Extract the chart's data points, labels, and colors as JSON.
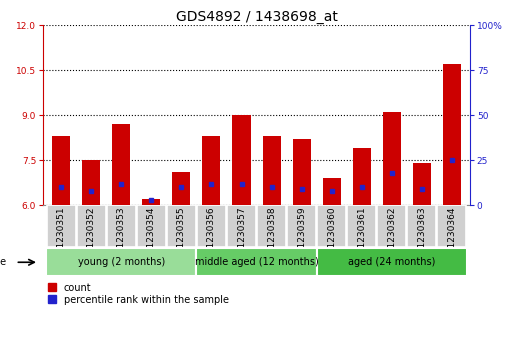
{
  "title": "GDS4892 / 1438698_at",
  "samples": [
    "GSM1230351",
    "GSM1230352",
    "GSM1230353",
    "GSM1230354",
    "GSM1230355",
    "GSM1230356",
    "GSM1230357",
    "GSM1230358",
    "GSM1230359",
    "GSM1230360",
    "GSM1230361",
    "GSM1230362",
    "GSM1230363",
    "GSM1230364"
  ],
  "count_values": [
    8.3,
    7.5,
    8.7,
    6.2,
    7.1,
    8.3,
    9.0,
    8.3,
    8.2,
    6.9,
    7.9,
    9.1,
    7.4,
    10.7
  ],
  "percentile_values": [
    10,
    8,
    12,
    3,
    10,
    12,
    12,
    10,
    9,
    8,
    10,
    18,
    9,
    25
  ],
  "ymin": 6,
  "ymax": 12,
  "yticks": [
    6,
    7.5,
    9,
    10.5,
    12
  ],
  "y2min": 0,
  "y2max": 100,
  "y2ticks": [
    0,
    25,
    50,
    75,
    100
  ],
  "bar_color": "#cc0000",
  "percentile_color": "#2222cc",
  "bar_width": 0.6,
  "groups": [
    {
      "label": "young (2 months)",
      "indices": [
        0,
        1,
        2,
        3,
        4
      ],
      "color": "#99dd99"
    },
    {
      "label": "middle aged (12 months)",
      "indices": [
        5,
        6,
        7,
        8
      ],
      "color": "#66cc66"
    },
    {
      "label": "aged (24 months)",
      "indices": [
        9,
        10,
        11,
        12,
        13
      ],
      "color": "#44bb44"
    }
  ],
  "age_label": "age",
  "legend_count_label": "count",
  "legend_percentile_label": "percentile rank within the sample",
  "title_fontsize": 10,
  "tick_fontsize": 6.5,
  "group_fontsize": 7,
  "axis_color_left": "#cc0000",
  "axis_color_right": "#2222cc",
  "cell_color": "#d0d0d0",
  "cell_edge_color": "#ffffff",
  "fig_bg": "#ffffff"
}
